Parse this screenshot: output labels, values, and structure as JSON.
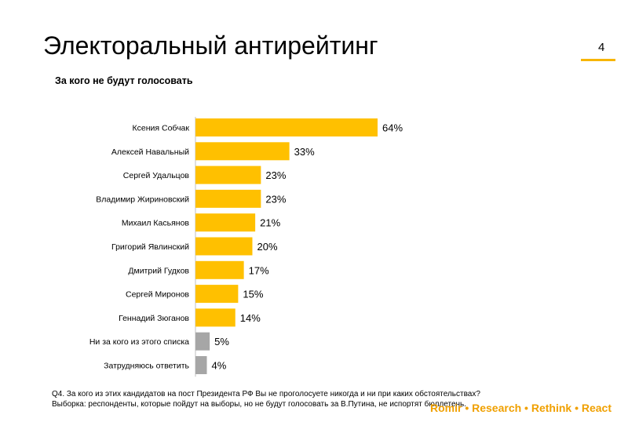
{
  "header": {
    "title": "Электоральный антирейтинг",
    "page_number": "4",
    "subtitle": "За кого не будут голосовать"
  },
  "footer": {
    "question": "Q4. За кого из этих кандидатов на пост Президента РФ Вы не проголосуете никогда и ни при каких обстоятельствах?",
    "sample": "Выборка: респонденты, которые пойдут на выборы, но не будут голосовать за В.Путина, не испортят бюллетень.",
    "brand": "Romir • Research • Rethink • React"
  },
  "colors": {
    "accent": "#ffc000",
    "neutral": "#a6a6a6",
    "brand_text": "#f0a000"
  },
  "chart_data": {
    "type": "bar",
    "orientation": "horizontal",
    "title": "За кого не будут голосовать",
    "categories": [
      "Ксения Собчак",
      "Алексей Навальный",
      "Сергей Удальцов",
      "Владимир Жириновский",
      "Михаил Касьянов",
      "Григорий Явлинский",
      "Дмитрий Гудков",
      "Сергей Миронов",
      "Геннадий Зюганов",
      "Ни за кого из этого списка",
      "Затрудняюсь ответить"
    ],
    "values": [
      64,
      33,
      23,
      23,
      21,
      20,
      17,
      15,
      14,
      5,
      4
    ],
    "value_labels": [
      "64%",
      "33%",
      "23%",
      "23%",
      "21%",
      "20%",
      "17%",
      "15%",
      "14%",
      "5%",
      "4%"
    ],
    "bar_colors": [
      "#ffc000",
      "#ffc000",
      "#ffc000",
      "#ffc000",
      "#ffc000",
      "#ffc000",
      "#ffc000",
      "#ffc000",
      "#ffc000",
      "#a6a6a6",
      "#a6a6a6"
    ],
    "unit": "%",
    "xlim": [
      0,
      64
    ],
    "grid": false,
    "legend": "none"
  }
}
